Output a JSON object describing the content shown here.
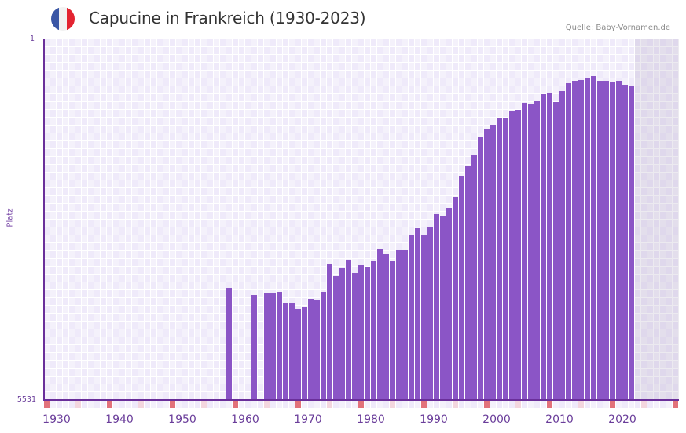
{
  "header": {
    "title": "Capucine in Frankreich (1930-2023)",
    "source": "Quelle: Baby-Vornamen.de",
    "flag_colors": [
      "#3a56a5",
      "#f2f2f2",
      "#e32431"
    ]
  },
  "axes": {
    "y_top_label": "1",
    "y_bottom_label": "5531",
    "y_title": "Platz",
    "x_ticks": [
      "1930",
      "1940",
      "1950",
      "1960",
      "1970",
      "1980",
      "1990",
      "2000",
      "2010",
      "2020"
    ]
  },
  "colors": {
    "bar": "#8b55c6",
    "axis": "#6a2f9a",
    "decade_marker": "#e2727a",
    "half_decade_marker": "#f3d6de"
  },
  "chart_data": {
    "type": "bar",
    "title": "Capucine in Frankreich (1930-2023)",
    "xlabel": "",
    "ylabel": "Platz",
    "y_inverted": true,
    "ylim": [
      5531,
      1
    ],
    "x_range": [
      1930,
      2030
    ],
    "grid": true,
    "legend": null,
    "annotation": "Quelle: Baby-Vornamen.de",
    "x": [
      1959,
      1963,
      1965,
      1966,
      1967,
      1968,
      1969,
      1970,
      1971,
      1972,
      1973,
      1974,
      1975,
      1976,
      1977,
      1978,
      1979,
      1980,
      1981,
      1982,
      1983,
      1984,
      1985,
      1986,
      1987,
      1988,
      1989,
      1990,
      1991,
      1992,
      1993,
      1994,
      1995,
      1996,
      1997,
      1998,
      1999,
      2000,
      2001,
      2002,
      2003,
      2004,
      2005,
      2006,
      2007,
      2008,
      2009,
      2010,
      2011,
      2012,
      2013,
      2014,
      2015,
      2016,
      2017,
      2018,
      2019,
      2020,
      2021,
      2022,
      2023
    ],
    "values": [
      3810,
      3920,
      3895,
      3895,
      3870,
      4040,
      4040,
      4135,
      4100,
      3980,
      4005,
      3870,
      3450,
      3630,
      3510,
      3390,
      3580,
      3460,
      3485,
      3400,
      3220,
      3290,
      3400,
      3230,
      3230,
      2990,
      2895,
      3005,
      2870,
      2680,
      2705,
      2585,
      2415,
      2090,
      1935,
      1765,
      1500,
      1380,
      1310,
      1200,
      1210,
      1105,
      1080,
      970,
      995,
      945,
      840,
      825,
      960,
      790,
      670,
      635,
      625,
      585,
      565,
      635,
      635,
      645,
      635,
      695,
      720
    ]
  }
}
